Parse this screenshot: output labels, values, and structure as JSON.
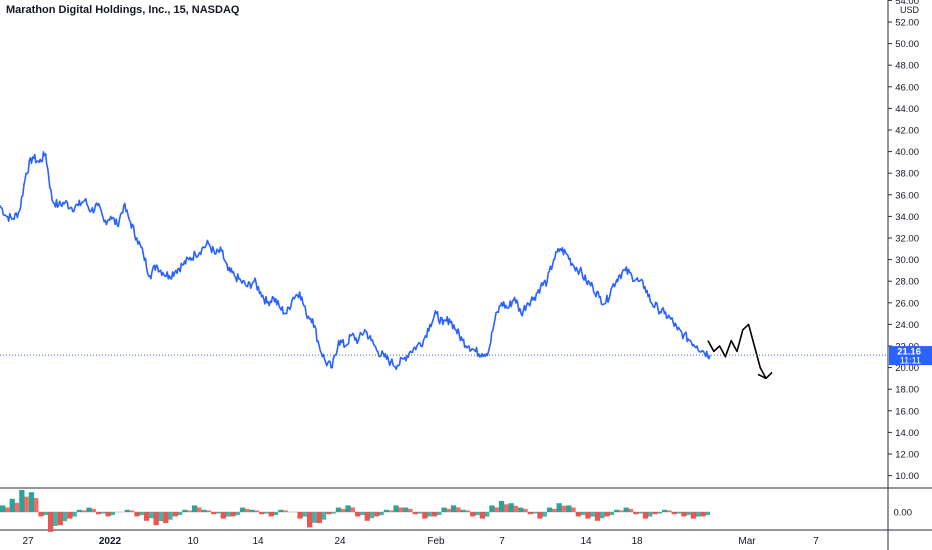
{
  "title": "Marathon Digital Holdings, Inc., 15, NASDAQ",
  "chart_data": {
    "type": "line",
    "currency": "USD",
    "y_ticks": [
      "54.00",
      "52.00",
      "50.00",
      "48.00",
      "46.00",
      "44.00",
      "42.00",
      "40.00",
      "38.00",
      "36.00",
      "34.00",
      "32.00",
      "30.00",
      "28.00",
      "26.00",
      "24.00",
      "22.00",
      "20.00",
      "18.00",
      "16.00",
      "14.00",
      "12.00",
      "10.00"
    ],
    "ylim": [
      9,
      54.5
    ],
    "x_ticks": [
      "27",
      "2022",
      "10",
      "14",
      "24",
      "Feb",
      "7",
      "14",
      "18",
      "Mar",
      "7"
    ],
    "last_price": {
      "value": 21.16,
      "label": "21.16",
      "timer": "11:11"
    },
    "series": [
      {
        "values": [
          35.0,
          34.0,
          33.8,
          34.5,
          38.0,
          39.5,
          39.0,
          39.8,
          35.5,
          35.0,
          35.3,
          34.8,
          35.0,
          35.5,
          34.5,
          35.0,
          33.5,
          34.0,
          33.2,
          35.0,
          33.5,
          32.0,
          30.5,
          28.5,
          29.5,
          28.8,
          28.5,
          29.0,
          29.5,
          30.0,
          30.5,
          31.0,
          31.5,
          30.5,
          30.8,
          29.0,
          28.5,
          28.0,
          27.5,
          28.0,
          27.0,
          26.0,
          26.5,
          25.5,
          25.0,
          26.5,
          27.0,
          25.0,
          24.5,
          22.0,
          20.5,
          20.0,
          22.5,
          22.0,
          23.0,
          22.5,
          23.5,
          22.5,
          21.5,
          21.0,
          20.5,
          20.2,
          20.8,
          21.5,
          22.0,
          22.5,
          24.0,
          25.0,
          24.0,
          24.5,
          23.5,
          22.5,
          22.0,
          21.5,
          21.3,
          21.5,
          24.5,
          26.0,
          25.5,
          26.5,
          25.0,
          26.0,
          26.5,
          27.5,
          28.0,
          30.0,
          31.0,
          30.5,
          29.5,
          29.0,
          28.0,
          27.5,
          26.5,
          26.0,
          27.5,
          28.5,
          29.0,
          28.5,
          28.0,
          27.5,
          26.0,
          25.5,
          25.0,
          24.5,
          23.5,
          23.0,
          22.5,
          22.0,
          21.5,
          21.16
        ],
        "color": "#2962ff"
      }
    ],
    "annotation_path": [
      22.5,
      21.5,
      22.0,
      21.0,
      22.5,
      21.5,
      23.5,
      24.0,
      22.0,
      20.0,
      19.0
    ],
    "oscillator": {
      "zero_label": "0.00",
      "values": [
        0.3,
        0.6,
        1.0,
        0.9,
        -0.2,
        -0.9,
        -0.6,
        -0.3,
        0.1,
        0.2,
        -0.1,
        -0.2,
        0.0,
        0.1,
        -0.2,
        -0.4,
        -0.6,
        -0.5,
        -0.2,
        0.1,
        0.3,
        0.1,
        -0.1,
        -0.3,
        -0.2,
        0.2,
        0.1,
        -0.1,
        -0.2,
        0.1,
        0.0,
        -0.3,
        -0.7,
        -0.5,
        -0.1,
        0.2,
        0.3,
        -0.2,
        -0.4,
        -0.2,
        0.1,
        0.3,
        0.2,
        -0.1,
        -0.3,
        -0.2,
        0.2,
        0.3,
        0.1,
        -0.2,
        -0.3,
        0.3,
        0.5,
        0.4,
        0.2,
        -0.1,
        -0.3,
        0.2,
        0.4,
        0.3,
        -0.2,
        -0.3,
        -0.4,
        -0.2,
        0.1,
        0.2,
        -0.1,
        -0.3,
        -0.1,
        0.1,
        -0.1,
        -0.2,
        -0.3,
        -0.2
      ],
      "pos_color": "#26a69a",
      "neg_color": "#ef5350"
    }
  }
}
